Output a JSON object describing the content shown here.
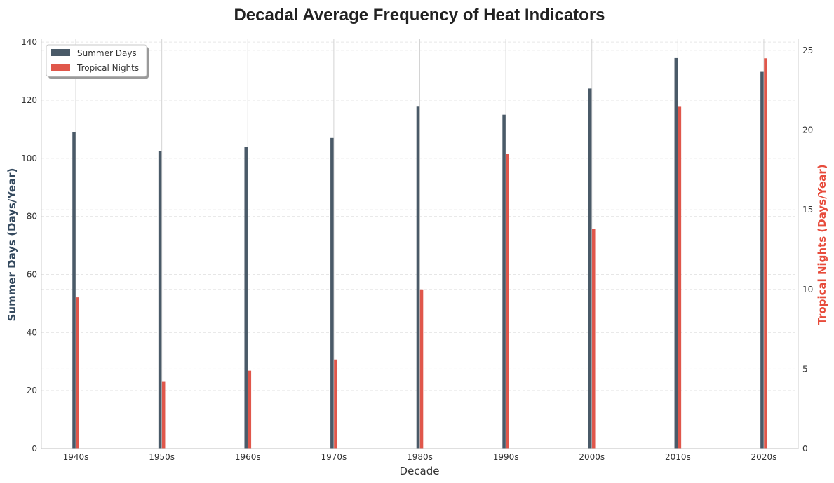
{
  "chart_data": {
    "type": "bar",
    "title": "Decadal Average Frequency of Heat Indicators",
    "xlabel": "Decade",
    "categories": [
      "1940s",
      "1950s",
      "1960s",
      "1970s",
      "1980s",
      "1990s",
      "2000s",
      "2010s",
      "2020s"
    ],
    "series": [
      {
        "name": "Summer Days",
        "axis": "left",
        "color": "#4a5a68",
        "values": [
          109,
          102.5,
          104,
          107,
          118,
          115,
          124,
          134.5,
          130
        ]
      },
      {
        "name": "Tropical Nights",
        "axis": "right",
        "color": "#e0574b",
        "values": [
          9.5,
          4.2,
          4.9,
          5.6,
          10,
          18.5,
          13.8,
          21.5,
          24.5
        ]
      }
    ],
    "left_axis": {
      "label": "Summer Days (Days/Year)",
      "color": "#34495e",
      "ylim": [
        0,
        141
      ],
      "ticks": [
        0,
        20,
        40,
        60,
        80,
        100,
        120,
        140
      ]
    },
    "right_axis": {
      "label": "Tropical Nights (Days/Year)",
      "color": "#e74c3c",
      "ylim": [
        0,
        25.7
      ],
      "ticks": [
        0,
        5,
        10,
        15,
        20,
        25
      ]
    },
    "grid": true,
    "legend": "top-left"
  }
}
